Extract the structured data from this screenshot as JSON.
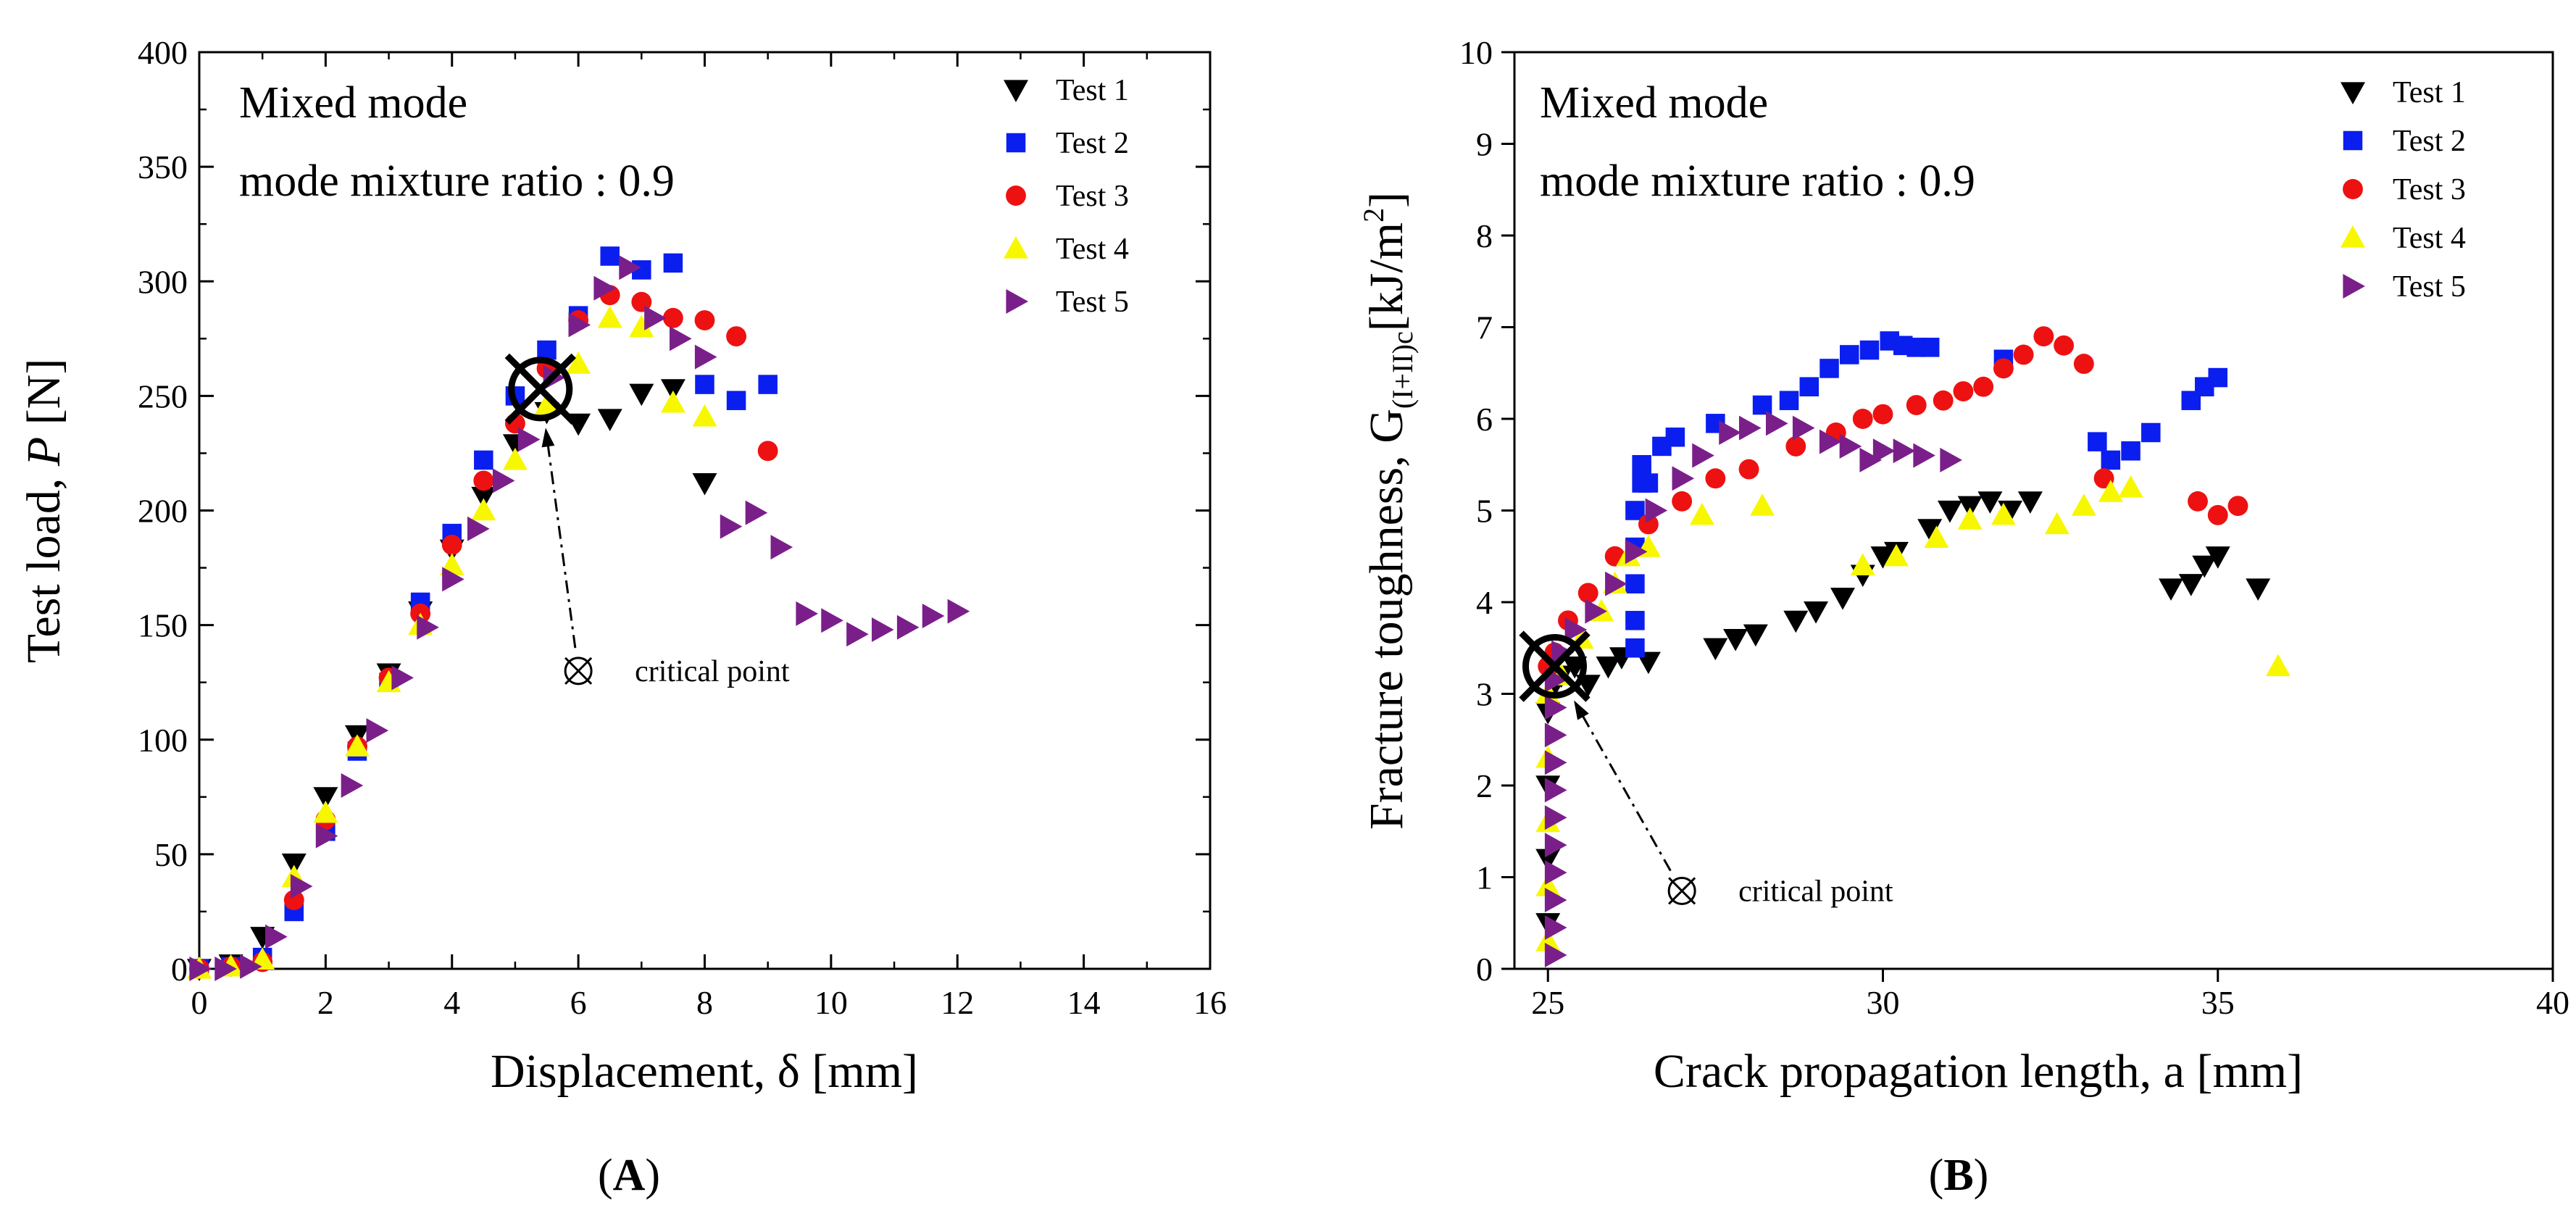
{
  "chart_data": [
    {
      "type": "scatter",
      "panel": "A",
      "panel_label": {
        "pre": "(",
        "letter": "A",
        "post": ")"
      },
      "xlabel": "Displacement, δ [mm]",
      "ylabel": {
        "pre": "Test load, ",
        "var": "P",
        "post": " [N]"
      },
      "xlim": [
        0,
        16
      ],
      "ylim": [
        0,
        400
      ],
      "xticks": [
        0,
        2,
        4,
        6,
        8,
        10,
        12,
        14,
        16
      ],
      "yticks": [
        0,
        50,
        100,
        150,
        200,
        250,
        300,
        350,
        400
      ],
      "annotations": [
        "Mixed mode",
        "mode mixture ratio : 0.9"
      ],
      "legend": [
        "Test 1",
        "Test 2",
        "Test 3",
        "Test 4",
        "Test 5"
      ],
      "legend_position": "top-right",
      "critical_point": {
        "label": "critical point",
        "x": 5.4,
        "y": 253,
        "label_x": 6.0,
        "label_y": 130
      },
      "series": [
        {
          "name": "Test 1",
          "marker": "triangle-down",
          "color": "#000000",
          "x": [
            0,
            0.5,
            1.0,
            1.5,
            2.0,
            2.5,
            3.0,
            3.5,
            4.0,
            4.5,
            5.0,
            5.5,
            6.0,
            6.5,
            7.0,
            7.5,
            8.0
          ],
          "y": [
            0,
            2,
            14,
            46,
            75,
            102,
            129,
            156,
            183,
            206,
            229,
            243,
            238,
            240,
            251,
            253,
            212
          ]
        },
        {
          "name": "Test 2",
          "marker": "square",
          "color": "#0a1ef0",
          "x": [
            0,
            0.5,
            1.0,
            1.5,
            2.0,
            2.5,
            3.0,
            3.5,
            4.0,
            4.5,
            5.0,
            5.5,
            6.0,
            6.5,
            7.0,
            7.5,
            8.0,
            8.5,
            9.0
          ],
          "y": [
            0,
            1,
            5,
            25,
            60,
            95,
            125,
            160,
            190,
            222,
            250,
            270,
            285,
            311,
            305,
            308,
            255,
            248,
            255
          ]
        },
        {
          "name": "Test 3",
          "marker": "circle",
          "color": "#ee1111",
          "x": [
            0,
            0.5,
            1.0,
            1.5,
            2.0,
            2.5,
            3.0,
            3.5,
            4.0,
            4.5,
            5.0,
            5.5,
            6.0,
            6.5,
            7.0,
            7.5,
            8.0,
            8.5,
            9.0
          ],
          "y": [
            0,
            1,
            3,
            30,
            65,
            97,
            127,
            155,
            185,
            213,
            238,
            262,
            283,
            294,
            291,
            284,
            283,
            276,
            226
          ]
        },
        {
          "name": "Test 4",
          "marker": "triangle-up",
          "color": "#f7f700",
          "x": [
            0,
            0.5,
            1.0,
            1.5,
            2.0,
            2.5,
            3.0,
            3.5,
            4.0,
            4.5,
            5.0,
            5.5,
            6.0,
            6.5,
            7.0,
            7.5,
            8.0
          ],
          "y": [
            0,
            1,
            4,
            40,
            68,
            97,
            125,
            150,
            176,
            200,
            222,
            246,
            264,
            284,
            280,
            247,
            241
          ]
        },
        {
          "name": "Test 5",
          "marker": "triangle-right",
          "color": "#7a1f8a",
          "x": [
            0,
            0.4,
            0.8,
            1.2,
            1.6,
            2.0,
            2.4,
            2.8,
            3.2,
            3.6,
            4.0,
            4.4,
            4.8,
            5.2,
            5.6,
            6.0,
            6.4,
            6.8,
            7.2,
            7.6,
            8.0,
            8.4,
            8.8,
            9.2,
            9.6,
            10.0,
            10.4,
            10.8,
            11.2,
            11.6,
            12.0
          ],
          "y": [
            0,
            0,
            1,
            14,
            36,
            58,
            80,
            104,
            127,
            149,
            170,
            192,
            213,
            231,
            258,
            281,
            297,
            306,
            284,
            275,
            267,
            193,
            199,
            184,
            155,
            152,
            146,
            148,
            149,
            154,
            156
          ]
        }
      ]
    },
    {
      "type": "scatter",
      "panel": "B",
      "panel_label": {
        "pre": "(",
        "letter": "B",
        "post": ")"
      },
      "xlabel": "Crack propagation length, a [mm]",
      "ylabel": {
        "pre": "Fracture toughness, G",
        "sub": "(I+II)c",
        "post": "[kJ/m",
        "sup": "2",
        "end": "]"
      },
      "xlim": [
        24.5,
        40
      ],
      "ylim": [
        0,
        10
      ],
      "xticks": [
        25,
        30,
        35,
        40
      ],
      "yticks": [
        0,
        1,
        2,
        3,
        4,
        5,
        6,
        7,
        8,
        9,
        10
      ],
      "annotations": [
        "Mixed mode",
        "mode mixture ratio : 0.9"
      ],
      "legend": [
        "Test 1",
        "Test 2",
        "Test 3",
        "Test 4",
        "Test 5"
      ],
      "legend_position": "top-right",
      "critical_point": {
        "label": "critical point",
        "x": 25.1,
        "y": 3.3,
        "label_x": 27.0,
        "label_y": 0.85
      },
      "series": [
        {
          "name": "Test 1",
          "marker": "triangle-down",
          "color": "#000000",
          "x": [
            25.0,
            25.0,
            25.0,
            25.0,
            25.1,
            25.2,
            25.4,
            25.6,
            25.9,
            26.1,
            26.5,
            27.5,
            27.8,
            28.1,
            28.7,
            29.0,
            29.4,
            29.7,
            30.0,
            30.2,
            30.7,
            31.0,
            31.3,
            31.6,
            31.9,
            32.2,
            34.3,
            34.6,
            34.8,
            35.0,
            35.6
          ],
          "y": [
            0.5,
            1.2,
            2.0,
            2.8,
            3.1,
            3.2,
            3.3,
            3.1,
            3.3,
            3.4,
            3.35,
            3.5,
            3.6,
            3.65,
            3.8,
            3.9,
            4.05,
            4.3,
            4.5,
            4.55,
            4.8,
            5.0,
            5.05,
            5.1,
            5.0,
            5.1,
            4.15,
            4.2,
            4.4,
            4.5,
            4.15
          ]
        },
        {
          "name": "Test 2",
          "marker": "square",
          "color": "#0a1ef0",
          "x": [
            26.3,
            26.3,
            26.3,
            26.3,
            26.3,
            26.4,
            26.4,
            26.5,
            26.7,
            26.9,
            27.5,
            28.2,
            28.6,
            28.9,
            29.2,
            29.5,
            29.8,
            30.1,
            30.3,
            30.5,
            30.7,
            31.8,
            33.2,
            33.4,
            33.7,
            34.0,
            34.6,
            34.8,
            35.0
          ],
          "y": [
            3.5,
            3.8,
            4.2,
            4.6,
            5.0,
            5.3,
            5.5,
            5.3,
            5.7,
            5.8,
            5.95,
            6.15,
            6.2,
            6.35,
            6.55,
            6.7,
            6.75,
            6.85,
            6.8,
            6.78,
            6.78,
            6.65,
            5.75,
            5.55,
            5.65,
            5.85,
            6.2,
            6.35,
            6.45
          ]
        },
        {
          "name": "Test 3",
          "marker": "circle",
          "color": "#ee1111",
          "x": [
            25.0,
            25.1,
            25.3,
            25.6,
            26.0,
            26.5,
            27.0,
            27.5,
            28.0,
            28.7,
            29.3,
            29.7,
            30.0,
            30.5,
            30.9,
            31.2,
            31.5,
            31.8,
            32.1,
            32.4,
            32.7,
            33.0,
            33.3,
            34.7,
            35.0,
            35.3
          ],
          "y": [
            3.3,
            3.45,
            3.8,
            4.1,
            4.5,
            4.85,
            5.1,
            5.35,
            5.45,
            5.7,
            5.85,
            6.0,
            6.05,
            6.15,
            6.2,
            6.3,
            6.35,
            6.55,
            6.7,
            6.9,
            6.8,
            6.6,
            5.35,
            5.1,
            4.95,
            5.05
          ]
        },
        {
          "name": "Test 4",
          "marker": "triangle-up",
          "color": "#f7f700",
          "x": [
            25.0,
            25.0,
            25.0,
            25.0,
            25.0,
            25.2,
            25.5,
            25.8,
            26.0,
            26.2,
            26.5,
            27.3,
            28.2,
            29.7,
            30.2,
            30.8,
            31.3,
            31.8,
            32.6,
            33.0,
            33.4,
            33.7,
            35.9
          ],
          "y": [
            0.3,
            0.9,
            1.6,
            2.3,
            3.0,
            3.2,
            3.6,
            3.9,
            4.2,
            4.5,
            4.6,
            4.95,
            5.05,
            4.4,
            4.5,
            4.7,
            4.9,
            4.95,
            4.85,
            5.05,
            5.2,
            5.25,
            3.3
          ]
        },
        {
          "name": "Test 5",
          "marker": "triangle-right",
          "color": "#7a1f8a",
          "x": [
            25.1,
            25.1,
            25.1,
            25.1,
            25.1,
            25.1,
            25.1,
            25.1,
            25.1,
            25.1,
            25.1,
            25.2,
            25.4,
            25.7,
            26.0,
            26.3,
            26.6,
            27.0,
            27.3,
            27.7,
            28.0,
            28.4,
            28.8,
            29.2,
            29.5,
            29.8,
            30.0,
            30.3,
            30.6,
            31.0
          ],
          "y": [
            0.15,
            0.45,
            0.75,
            1.05,
            1.35,
            1.65,
            1.95,
            2.25,
            2.55,
            2.85,
            3.15,
            3.45,
            3.7,
            3.9,
            4.2,
            4.55,
            5.0,
            5.35,
            5.6,
            5.85,
            5.9,
            5.95,
            5.9,
            5.75,
            5.7,
            5.55,
            5.65,
            5.65,
            5.6,
            5.55
          ]
        }
      ]
    }
  ]
}
